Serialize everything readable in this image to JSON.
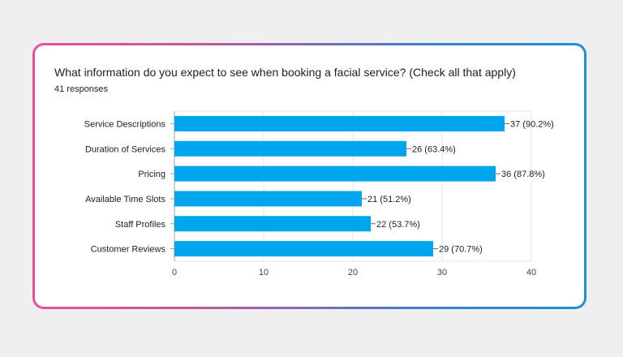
{
  "title": "What information do you expect to see when booking a facial service? (Check all that apply)",
  "subtitle": "41 responses",
  "colors": {
    "bar": "#00a6ed",
    "frame_start": "#ec4f9a",
    "frame_end": "#1f8fd6"
  },
  "chart_data": {
    "type": "bar",
    "orientation": "horizontal",
    "title": "What information do you expect to see when booking a facial service? (Check all that apply)",
    "categories": [
      "Service Descriptions",
      "Duration of Services",
      "Pricing",
      "Available Time Slots",
      "Staff Profiles",
      "Customer Reviews"
    ],
    "values": [
      37,
      26,
      36,
      21,
      22,
      29
    ],
    "data_labels": [
      "37 (90.2%)",
      "26 (63.4%)",
      "36 (87.8%)",
      "21 (51.2%)",
      "22 (53.7%)",
      "29 (70.7%)"
    ],
    "xlim": [
      0,
      40
    ],
    "xticks": [
      0,
      10,
      20,
      30,
      40
    ],
    "grid": true,
    "legend": "none"
  }
}
